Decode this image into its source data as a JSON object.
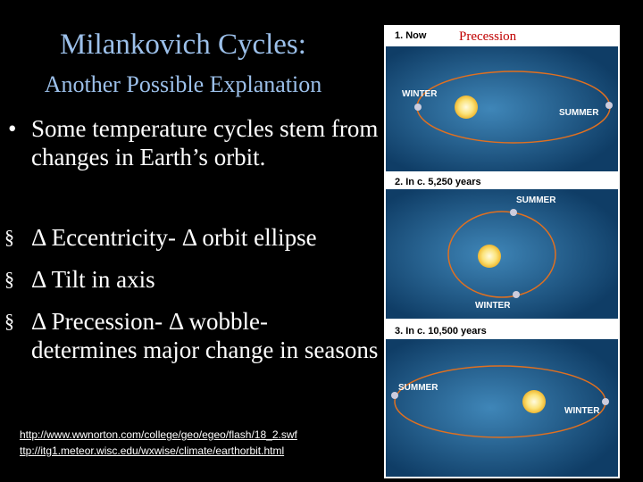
{
  "title": "Milankovich Cycles:",
  "subtitle": "Another Possible Explanation",
  "bullets": [
    "Some temperature cycles stem from changes in Earth’s orbit."
  ],
  "sub_bullets": [
    "Δ Eccentricity- Δ orbit ellipse",
    "Δ Tilt in axis",
    "Δ Precession- Δ wobble- determines major change in seasons"
  ],
  "links": [
    "http://www.wwnorton.com/college/geo/egeo/flash/18_2.swf",
    "ttp://itg1.meteor.wisc.edu/wxwise/climate/earthorbit.html"
  ],
  "figure": {
    "title": "Precession",
    "panels": [
      {
        "label": "1. Now",
        "labels": [
          "WINTER",
          "SUMMER"
        ]
      },
      {
        "label": "2. In c. 5,250 years",
        "labels": [
          "SUMMER",
          "WINTER"
        ]
      },
      {
        "label": "3. In c. 10,500 years",
        "labels": [
          "SUMMER",
          "WINTER"
        ]
      }
    ]
  }
}
